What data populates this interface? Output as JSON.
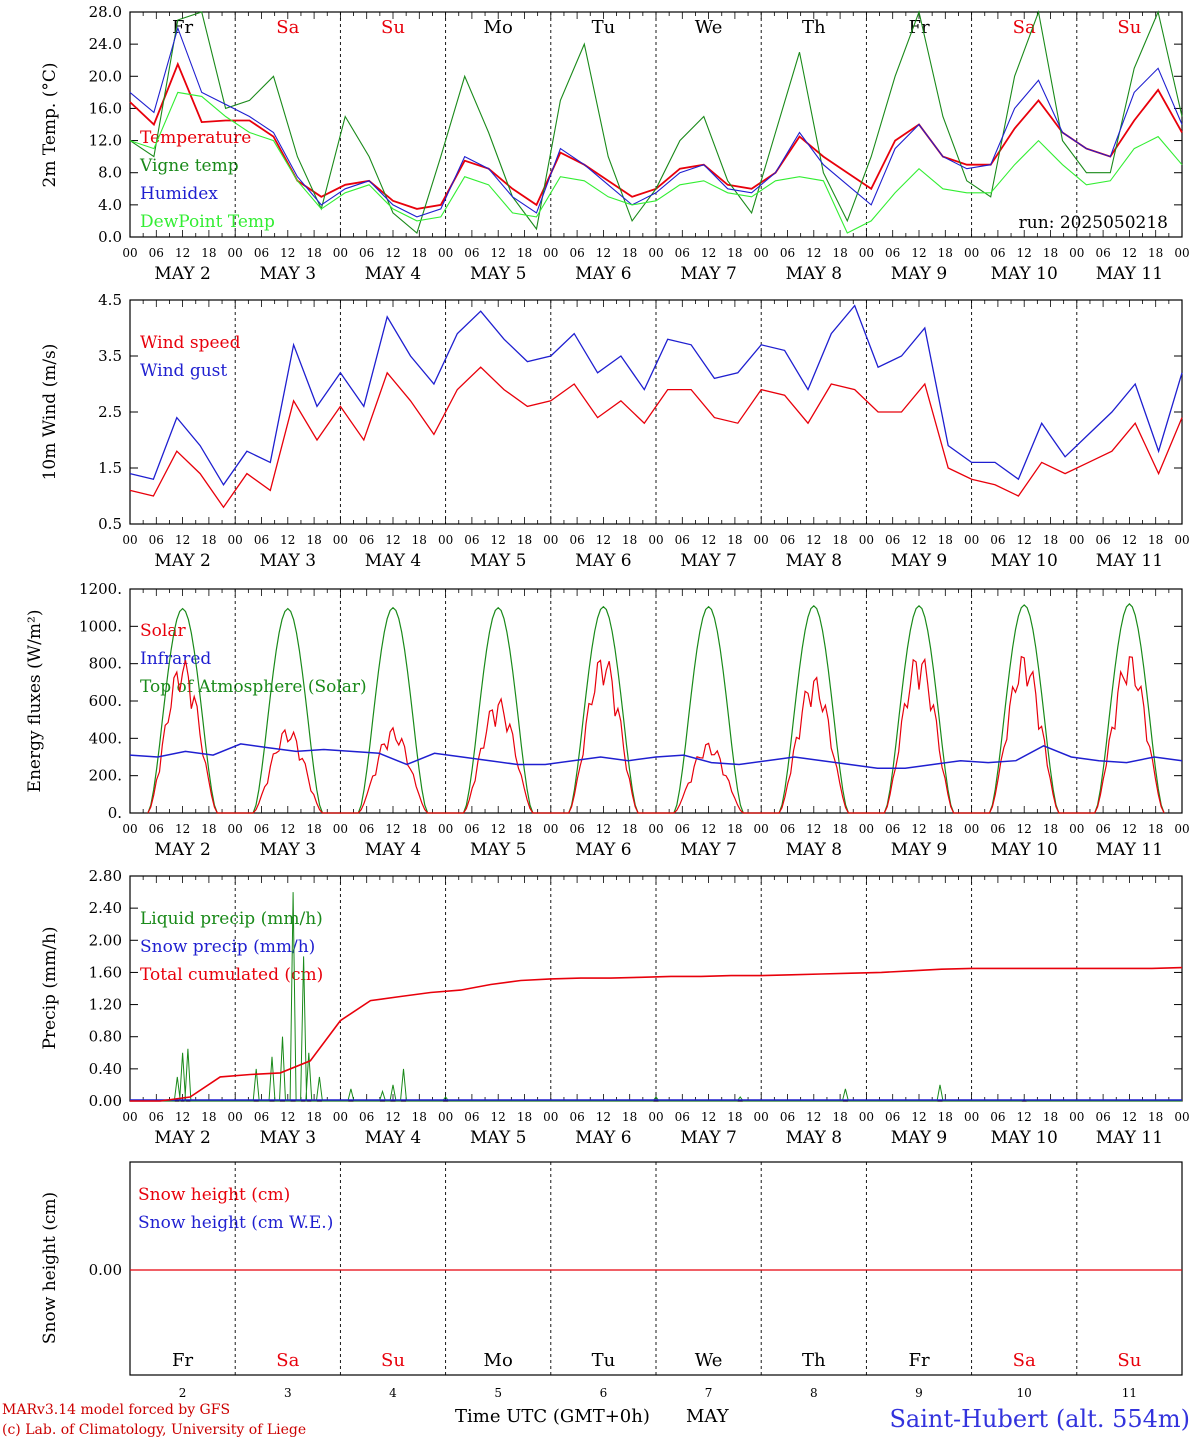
{
  "footer": {
    "credit_line1": "MARv3.14 model forced by GFS",
    "credit_line2": "(c) Lab. of Climatology, University of Liege",
    "axis_title": "Time UTC (GMT+0h)",
    "month": "MAY",
    "station": "Saint-Hubert (alt. 554m)"
  },
  "colors": {
    "red": "#e8000b",
    "green": "#1a8a1a",
    "blue": "#1f1fd0",
    "lightgreen": "#33ee33"
  },
  "chart_data": {
    "type": "line",
    "timeline": {
      "hour_labels": [
        "00",
        "06",
        "12",
        "18"
      ],
      "final_label": "00",
      "dates": [
        "MAY  2",
        "MAY  3",
        "MAY  4",
        "MAY  5",
        "MAY  6",
        "MAY  7",
        "MAY  8",
        "MAY  9",
        "MAY 10",
        "MAY 11"
      ],
      "weekdays": [
        "Fr",
        "Sa",
        "Su",
        "Mo",
        "Tu",
        "We",
        "Th",
        "Fr",
        "Sa",
        "Su"
      ],
      "weekday_colors": [
        "black",
        "red",
        "red",
        "black",
        "black",
        "black",
        "black",
        "black",
        "red",
        "red"
      ],
      "day_numbers": [
        "2",
        "3",
        "4",
        "5",
        "6",
        "7",
        "8",
        "9",
        "10",
        "11"
      ]
    },
    "panels": [
      {
        "id": "temperature",
        "ylabel": "2m Temp. (°C)",
        "ylim": [
          0,
          28
        ],
        "yticks": [
          "0.0",
          "4.0",
          "8.0",
          "12.0",
          "16.0",
          "20.0",
          "24.0",
          "28.0"
        ],
        "annotation": "run: 2025050218",
        "series": [
          {
            "name": "Temperature",
            "color": "red",
            "values": [
              16.8,
              14,
              21.5,
              14.3,
              14.5,
              14.5,
              12.5,
              7,
              5,
              6.5,
              7,
              4.5,
              3.5,
              4,
              9.5,
              8.5,
              6,
              4,
              10.5,
              9,
              7,
              5,
              6,
              8.5,
              9,
              6.5,
              6,
              8,
              12.5,
              10,
              8,
              6,
              12,
              14,
              10,
              9,
              9,
              13.5,
              17,
              13,
              11,
              10,
              14.5,
              18.3,
              13
            ]
          },
          {
            "name": "Vigne temp",
            "color": "green",
            "values": [
              12,
              10,
              27,
              28,
              16,
              17,
              20,
              10,
              3.5,
              15,
              10,
              3,
              0.5,
              10,
              20,
              13,
              5,
              1,
              17,
              24,
              10,
              2,
              6,
              12,
              15,
              7,
              3,
              13,
              23,
              8,
              2,
              10,
              20,
              28,
              15,
              7,
              5,
              20,
              28,
              12,
              8,
              8,
              21,
              28,
              15
            ]
          },
          {
            "name": "Humidex",
            "color": "blue",
            "values": [
              18,
              15.5,
              26,
              18,
              16.5,
              15,
              13,
              7.5,
              4,
              6,
              7,
              4,
              2.5,
              3.5,
              10,
              8.5,
              5,
              3,
              11,
              9,
              6.5,
              4,
              5.5,
              8,
              9,
              6,
              5.5,
              8,
              13,
              9,
              6.5,
              4,
              11,
              14,
              10,
              8.5,
              9,
              16,
              19.5,
              13,
              11,
              10,
              18,
              21,
              14
            ]
          },
          {
            "name": "DewPoint Temp",
            "color": "lightgreen",
            "values": [
              12,
              11,
              18,
              17.5,
              15,
              13,
              12,
              7,
              3.5,
              5.5,
              6.5,
              3.5,
              2,
              2.5,
              7.5,
              6.5,
              3,
              2.5,
              7.5,
              7,
              5,
              4,
              4.5,
              6.5,
              7,
              5.5,
              5,
              7,
              7.5,
              7,
              0.5,
              2,
              5.5,
              8.5,
              6,
              5.5,
              5.5,
              9,
              12,
              9,
              6.5,
              7,
              11,
              12.5,
              9
            ]
          }
        ]
      },
      {
        "id": "wind",
        "ylabel": "10m Wind (m/s)",
        "ylim": [
          0.5,
          4.5
        ],
        "yticks": [
          "0.5",
          "1.5",
          "2.5",
          "3.5",
          "4.5"
        ],
        "series": [
          {
            "name": "Wind speed",
            "color": "red",
            "values": [
              1.1,
              1.0,
              1.8,
              1.4,
              0.8,
              1.4,
              1.1,
              2.7,
              2.0,
              2.6,
              2.0,
              3.2,
              2.7,
              2.1,
              2.9,
              3.3,
              2.9,
              2.6,
              2.7,
              3.0,
              2.4,
              2.7,
              2.3,
              2.9,
              2.9,
              2.4,
              2.3,
              2.9,
              2.8,
              2.3,
              3.0,
              2.9,
              2.5,
              2.5,
              3.0,
              1.5,
              1.3,
              1.2,
              1.0,
              1.6,
              1.4,
              1.6,
              1.8,
              2.3,
              1.4,
              2.4
            ]
          },
          {
            "name": "Wind gust",
            "color": "blue",
            "values": [
              1.4,
              1.3,
              2.4,
              1.9,
              1.2,
              1.8,
              1.6,
              3.7,
              2.6,
              3.2,
              2.6,
              4.2,
              3.5,
              3.0,
              3.9,
              4.3,
              3.8,
              3.4,
              3.5,
              3.9,
              3.2,
              3.5,
              2.9,
              3.8,
              3.7,
              3.1,
              3.2,
              3.7,
              3.6,
              2.9,
              3.9,
              4.4,
              3.3,
              3.5,
              4.0,
              1.9,
              1.6,
              1.6,
              1.3,
              2.3,
              1.7,
              2.1,
              2.5,
              3.0,
              1.8,
              3.2
            ]
          }
        ]
      },
      {
        "id": "energy",
        "ylabel": "Energy fluxes (W/m²)",
        "ylim": [
          0,
          1200
        ],
        "yticks": [
          "0.",
          "200.",
          "400.",
          "600.",
          "800.",
          "1000.",
          "1200."
        ],
        "series": [
          {
            "name": "Solar",
            "color": "red",
            "peaks": [
              830,
              280,
              450,
              600,
              860,
              360,
              730,
              870,
              860,
              860
            ],
            "daily_max": [
              830,
              460,
              460,
              620,
              860,
              380,
              740,
              870,
              860,
              860
            ]
          },
          {
            "name": "Infrared",
            "color": "blue",
            "values": [
              310,
              300,
              330,
              310,
              370,
              350,
              330,
              340,
              330,
              320,
              260,
              320,
              300,
              280,
              260,
              260,
              280,
              300,
              280,
              300,
              310,
              270,
              260,
              280,
              300,
              280,
              260,
              240,
              240,
              260,
              280,
              270,
              280,
              360,
              300,
              280,
              270,
              300,
              280
            ]
          },
          {
            "name": "Top of Atmosphere (Solar)",
            "color": "green",
            "peaks": [
              1095,
              1095,
              1100,
              1100,
              1105,
              1105,
              1110,
              1110,
              1115,
              1120
            ]
          }
        ]
      },
      {
        "id": "precip",
        "ylabel": "Precip (mm/h)",
        "ylim": [
          0,
          2.8
        ],
        "yticks": [
          "0.00",
          "0.40",
          "0.80",
          "1.20",
          "1.60",
          "2.00",
          "2.40",
          "2.80"
        ],
        "series": [
          {
            "name": "Liquid precip (mm/h)",
            "color": "green",
            "spikes": [
              [
                0.45,
                0.3
              ],
              [
                0.5,
                0.6
              ],
              [
                0.55,
                0.65
              ],
              [
                1.2,
                0.4
              ],
              [
                1.35,
                0.55
              ],
              [
                1.45,
                0.8
              ],
              [
                1.55,
                2.6
              ],
              [
                1.65,
                1.8
              ],
              [
                1.7,
                0.6
              ],
              [
                1.8,
                0.3
              ],
              [
                2.1,
                0.15
              ],
              [
                2.4,
                0.12
              ],
              [
                2.5,
                0.2
              ],
              [
                2.6,
                0.4
              ],
              [
                3.0,
                0.05
              ],
              [
                5.0,
                0.05
              ],
              [
                5.8,
                0.05
              ],
              [
                6.8,
                0.15
              ],
              [
                7.7,
                0.2
              ],
              [
                8.5,
                0.02
              ]
            ]
          },
          {
            "name": "Snow precip (mm/h)",
            "color": "blue",
            "values": [
              0
            ]
          },
          {
            "name": "Total cumulated (cm)",
            "color": "red",
            "values": [
              0,
              0,
              0.05,
              0.3,
              0.33,
              0.35,
              0.5,
              1.0,
              1.25,
              1.3,
              1.35,
              1.38,
              1.45,
              1.5,
              1.52,
              1.53,
              1.53,
              1.54,
              1.55,
              1.55,
              1.56,
              1.56,
              1.57,
              1.58,
              1.59,
              1.6,
              1.62,
              1.64,
              1.65,
              1.65,
              1.65,
              1.65,
              1.65,
              1.65,
              1.65,
              1.66
            ]
          }
        ]
      },
      {
        "id": "snow",
        "ylabel": "Snow height (cm)",
        "ytick": "0.00",
        "series": [
          {
            "name": "Snow height (cm)",
            "color": "red",
            "values": [
              0
            ]
          },
          {
            "name": "Snow height (cm W.E.)",
            "color": "blue",
            "values": [
              0
            ]
          }
        ]
      }
    ]
  }
}
